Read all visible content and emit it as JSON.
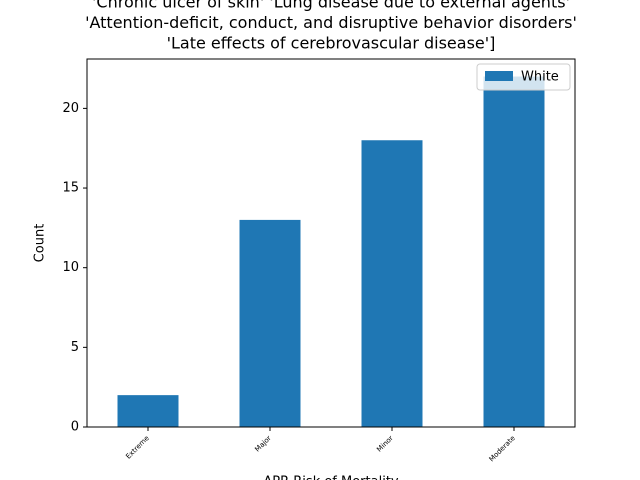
{
  "chart_data": {
    "type": "bar",
    "title_lines": [
      "'Chronic ulcer of skin' 'Lung disease due to external agents'",
      "'Attention-deficit, conduct, and disruptive behavior disorders'",
      "'Late effects of cerebrovascular disease']"
    ],
    "x_label": "APR Risk of Mortality",
    "y_label": "Count",
    "categories": [
      "Extreme",
      "Major",
      "Minor",
      "Moderate"
    ],
    "series": [
      {
        "name": "White",
        "color": "#1f77b4",
        "values": [
          2,
          13,
          18,
          22
        ]
      }
    ],
    "ylim": [
      0,
      23.1
    ],
    "yticks": [
      0,
      5,
      10,
      15,
      20
    ],
    "legend": "upper right"
  }
}
